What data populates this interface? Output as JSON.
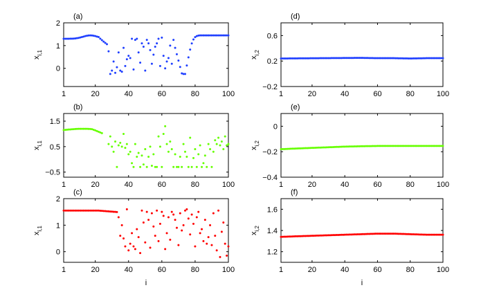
{
  "chart_data": [
    {
      "type": "scatter",
      "panel_label": "(a)",
      "color": "#1f3fff",
      "pattern": "left",
      "xlabel": "",
      "ylabel_main": "x",
      "ylabel_sub": "i,1",
      "xlim": [
        1,
        100
      ],
      "ylim": [
        -0.8,
        2
      ],
      "xticks": [
        "1",
        "20",
        "40",
        "60",
        "80",
        "100"
      ],
      "yticks": [
        "0",
        "1",
        "2"
      ],
      "series": [
        {
          "x": [
            28,
            29,
            30,
            31,
            32,
            33,
            34,
            35,
            36,
            37,
            38,
            39,
            40,
            41,
            42,
            43,
            44,
            45,
            46,
            47,
            48,
            49,
            50,
            51,
            52,
            53,
            54,
            55,
            56,
            57,
            58,
            59,
            60,
            61,
            62,
            63,
            64,
            65,
            66,
            67
          ],
          "y": [
            0.75,
            -0.25,
            -0.1,
            0.3,
            -0.2,
            0.05,
            0.7,
            -0.1,
            -0.15,
            0.9,
            0.1,
            0.4,
            0.55,
            0.45,
            1.3,
            -0.05,
            1.25,
            1.3,
            0.7,
            0.25,
            1.1,
            0.95,
            -0.1,
            1.25,
            1.1,
            0.8,
            0.2,
            0.6,
            0.95,
            1.1,
            1.3,
            0.1,
            1.35,
            0.55,
            0.0,
            0.3,
            0.45,
            1.0,
            0.2,
            1.25
          ]
        }
      ]
    },
    {
      "type": "scatter",
      "panel_label": "(b)",
      "color": "#66ff00",
      "pattern": "left",
      "xlabel": "",
      "ylabel_main": "x",
      "ylabel_sub": "i,1",
      "xlim": [
        1,
        100
      ],
      "ylim": [
        -0.7,
        1.8
      ],
      "xticks": [
        "1",
        "20",
        "40",
        "60",
        "80",
        "100"
      ],
      "yticks": [
        "−0.5",
        "0.5",
        "1.5"
      ],
      "series": [
        {
          "x": [
            28,
            29,
            30,
            31,
            32,
            33,
            34,
            35,
            36,
            37,
            38,
            39,
            40,
            41,
            42,
            43,
            44,
            45,
            46,
            47,
            48,
            49,
            50,
            51,
            52,
            53,
            54,
            55,
            56,
            57,
            58,
            59,
            60,
            61,
            62,
            63,
            64,
            65,
            66,
            67,
            68,
            69,
            70,
            71,
            72,
            73,
            74,
            75,
            76,
            77,
            78,
            79,
            80,
            81,
            82,
            83,
            84,
            85,
            86,
            87,
            88,
            89,
            90,
            91,
            92,
            93,
            94,
            95,
            96,
            97,
            98,
            99,
            100
          ],
          "y": [
            0.6,
            0.9,
            0.5,
            0.3,
            0.7,
            -0.3,
            0.55,
            0.65,
            0.5,
            1.0,
            0.45,
            0.6,
            0.2,
            0.3,
            -0.15,
            -0.3,
            0.6,
            0.1,
            0.25,
            -0.3,
            0.15,
            -0.2,
            0.4,
            -0.3,
            0.1,
            0.5,
            -0.25,
            0.2,
            -0.3,
            -0.3,
            0.9,
            0.5,
            -0.3,
            1.0,
            1.3,
            0.6,
            0.3,
            0.7,
            0.4,
            -0.3,
            0.2,
            -0.3,
            -0.3,
            0.1,
            -0.3,
            0.6,
            0.3,
            0.1,
            -0.3,
            0.85,
            -0.3,
            0.05,
            0.4,
            -0.3,
            0.2,
            0.55,
            -0.3,
            -0.15,
            0.15,
            -0.3,
            0.6,
            0.4,
            -0.3,
            0.3,
            0.75,
            0.6,
            0.85,
            0.55,
            0.7,
            0.4,
            0.9,
            0.55,
            0.6
          ]
        }
      ]
    },
    {
      "type": "scatter",
      "panel_label": "(c)",
      "color": "#ff0000",
      "pattern": "left",
      "xlabel": "i",
      "ylabel_main": "x",
      "ylabel_sub": "i,1",
      "xlim": [
        1,
        100
      ],
      "ylim": [
        -0.4,
        2
      ],
      "xticks": [
        "1",
        "20",
        "40",
        "60",
        "80",
        "100"
      ],
      "yticks": [
        "0",
        "1",
        "2"
      ],
      "series": [
        {
          "x": [
            34,
            35,
            36,
            37,
            38,
            39,
            40,
            41,
            42,
            43,
            44,
            45,
            46,
            47,
            48,
            49,
            50,
            51,
            52,
            53,
            54,
            55,
            56,
            57,
            58,
            59,
            60,
            61,
            62,
            63,
            64,
            65,
            66,
            67,
            68,
            69,
            70,
            71,
            72,
            73,
            74,
            75,
            76,
            77,
            78,
            79,
            80,
            81,
            82,
            83,
            84,
            85,
            86,
            87,
            88,
            89,
            90,
            91,
            92,
            93,
            94,
            95,
            96,
            97,
            98,
            99,
            100
          ],
          "y": [
            1.3,
            0.6,
            1.0,
            0.5,
            0.2,
            1.6,
            0.05,
            0.3,
            0.7,
            0.2,
            0.1,
            0.85,
            0.55,
            -0.05,
            1.55,
            1.1,
            0.35,
            1.5,
            1.2,
            0.15,
            1.45,
            0.95,
            0.6,
            1.55,
            0.4,
            1.05,
            1.5,
            1.35,
            0.1,
            0.7,
            1.3,
            0.45,
            1.5,
            1.4,
            1.2,
            0.9,
            0.25,
            1.45,
            0.8,
            1.0,
            1.55,
            1.6,
            1.25,
            0.65,
            1.4,
            1.05,
            0.2,
            1.3,
            1.5,
            0.7,
            0.85,
            0.4,
            1.2,
            0.3,
            0.55,
            1.0,
            0.25,
            1.45,
            0.6,
            0.05,
            1.55,
            -0.2,
            0.75,
            1.1,
            0.3,
            -0.15,
            0.2
          ]
        }
      ]
    },
    {
      "type": "scatter",
      "panel_label": "(d)",
      "color": "#1f3fff",
      "pattern": "right",
      "xlabel": "",
      "ylabel_main": "x",
      "ylabel_sub": "i,2",
      "xlim": [
        1,
        100
      ],
      "ylim": [
        -0.2,
        0.8
      ],
      "xticks": [
        "1",
        "20",
        "40",
        "60",
        "80",
        "100"
      ],
      "yticks": [
        "−0.2",
        "0.2",
        "0.6"
      ],
      "series": [
        {
          "x": [
            1,
            25,
            50,
            60,
            70,
            80,
            90,
            100
          ],
          "y": [
            0.24,
            0.245,
            0.25,
            0.245,
            0.245,
            0.24,
            0.245,
            0.245
          ]
        }
      ]
    },
    {
      "type": "scatter",
      "panel_label": "(e)",
      "color": "#66ff00",
      "pattern": "right",
      "xlabel": "",
      "ylabel_main": "x",
      "ylabel_sub": "i,2",
      "xlim": [
        1,
        100
      ],
      "ylim": [
        -0.4,
        0.1
      ],
      "xticks": [
        "1",
        "20",
        "40",
        "60",
        "80",
        "100"
      ],
      "yticks": [
        "−0.4",
        "−0.2",
        "0"
      ],
      "series": [
        {
          "x": [
            1,
            10,
            20,
            30,
            40,
            50,
            60,
            70,
            80,
            90,
            100
          ],
          "y": [
            -0.18,
            -0.175,
            -0.17,
            -0.165,
            -0.16,
            -0.157,
            -0.155,
            -0.155,
            -0.155,
            -0.155,
            -0.155
          ]
        }
      ]
    },
    {
      "type": "scatter",
      "panel_label": "(f)",
      "color": "#ff0000",
      "pattern": "right",
      "xlabel": "i",
      "ylabel_main": "x",
      "ylabel_sub": "i,2",
      "xlim": [
        1,
        100
      ],
      "ylim": [
        1.1,
        1.7
      ],
      "xticks": [
        "1",
        "20",
        "40",
        "60",
        "80",
        "100"
      ],
      "yticks": [
        "1.2",
        "1.4",
        "1.6"
      ],
      "series": [
        {
          "x": [
            1,
            10,
            20,
            30,
            40,
            50,
            60,
            70,
            80,
            90,
            100
          ],
          "y": [
            1.34,
            1.345,
            1.35,
            1.355,
            1.36,
            1.365,
            1.37,
            1.37,
            1.365,
            1.36,
            1.36
          ]
        }
      ]
    }
  ]
}
